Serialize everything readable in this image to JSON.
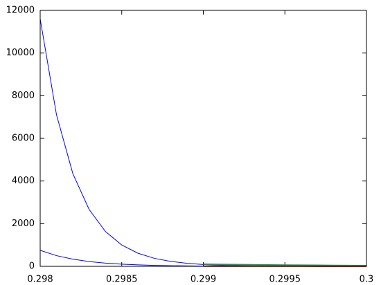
{
  "chart_data": {
    "type": "line",
    "x": [
      0.298,
      0.2981,
      0.2982,
      0.2983,
      0.2984,
      0.2985,
      0.2986,
      0.2987,
      0.2988,
      0.2989,
      0.299,
      0.2991,
      0.2992,
      0.2993,
      0.2994,
      0.2995,
      0.2996,
      0.2997,
      0.2998,
      0.2999,
      0.3
    ],
    "series": [
      {
        "color": "#0000ff",
        "values": [
          11600,
          7105,
          4352,
          2666,
          1633,
          1000,
          613,
          375,
          230,
          141,
          86,
          53,
          32,
          20,
          12,
          7,
          5,
          3,
          2,
          1,
          1
        ]
      },
      {
        "color": "#0000ff",
        "values": [
          750,
          501,
          335,
          224,
          149,
          100,
          67,
          45,
          30,
          20,
          13,
          9,
          6,
          4,
          3,
          2,
          1,
          1,
          1,
          0,
          0
        ]
      },
      {
        "color": "#00a060",
        "values": [
          null,
          null,
          null,
          null,
          null,
          null,
          null,
          null,
          null,
          null,
          100,
          90,
          80,
          72,
          65,
          58,
          52,
          47,
          42,
          38,
          34
        ]
      },
      {
        "color": "#ff0000",
        "values": [
          null,
          null,
          null,
          null,
          null,
          null,
          null,
          null,
          null,
          null,
          10,
          9,
          9,
          8,
          8,
          7,
          7,
          6,
          6,
          5,
          5
        ]
      }
    ],
    "xlim": [
      0.298,
      0.3
    ],
    "ylim": [
      0,
      12000
    ],
    "xticks": [
      0.298,
      0.2985,
      0.299,
      0.2995,
      0.3
    ],
    "yticks": [
      0,
      2000,
      4000,
      6000,
      8000,
      10000,
      12000
    ]
  }
}
